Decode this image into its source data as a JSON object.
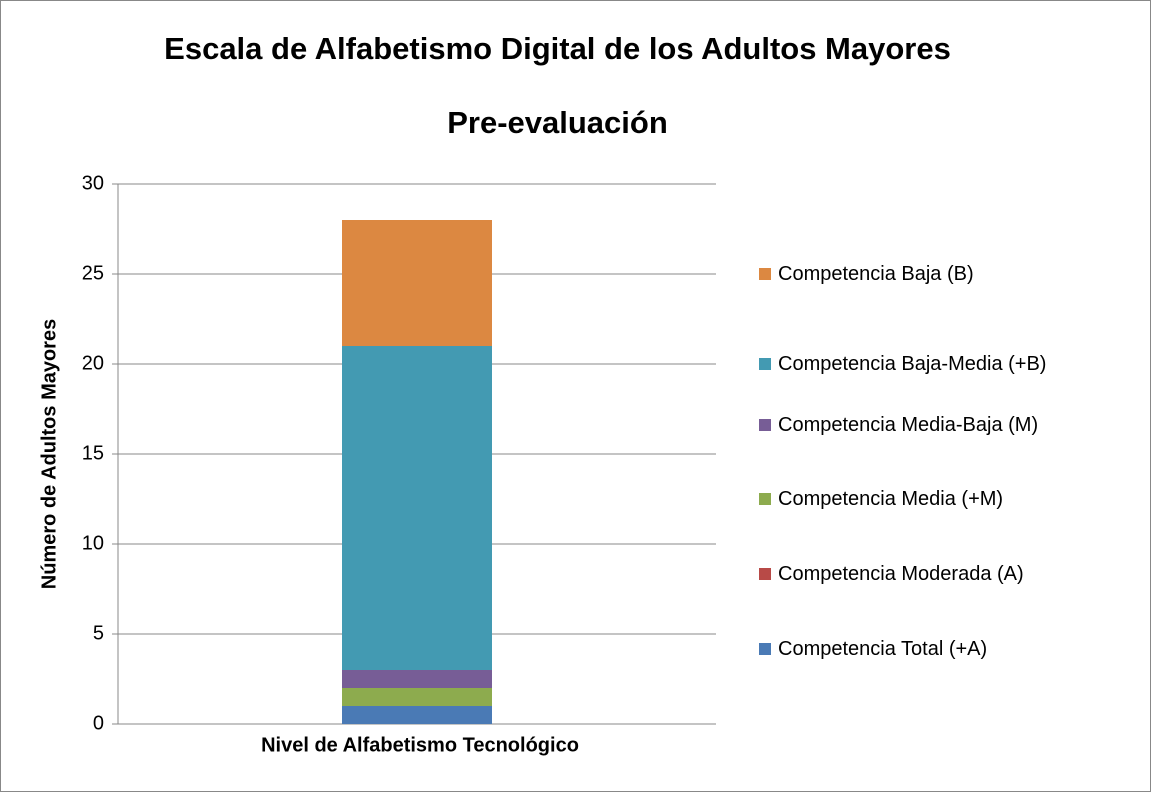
{
  "chart_data": {
    "type": "bar",
    "stacked": true,
    "title": [
      "Escala de Alfabetismo Digital de los Adultos Mayores",
      "Pre-evaluación"
    ],
    "xlabel": "Nivel de Alfabetismo Tecnológico",
    "ylabel": "Número de Adultos Mayores",
    "categories": [
      "Nivel de Alfabetismo Tecnológico"
    ],
    "series": [
      {
        "name": "Competencia Total (+A)",
        "color": "#4a7ab5",
        "values": [
          1
        ]
      },
      {
        "name": "Competencia Moderada (A)",
        "color": "#b84a47",
        "values": [
          0
        ]
      },
      {
        "name": "Competencia Media (+M)",
        "color": "#8dab4e",
        "values": [
          1
        ]
      },
      {
        "name": "Competencia Media-Baja (M)",
        "color": "#775d96",
        "values": [
          1
        ]
      },
      {
        "name": "Competencia Baja-Media (+B)",
        "color": "#439ab2",
        "values": [
          18
        ]
      },
      {
        "name": "Competencia Baja (B)",
        "color": "#dc8841",
        "values": [
          7
        ]
      }
    ],
    "ylim": [
      0,
      30
    ],
    "yticks": [
      0,
      5,
      10,
      15,
      20,
      25,
      30
    ],
    "grid": true,
    "legend": "right"
  }
}
